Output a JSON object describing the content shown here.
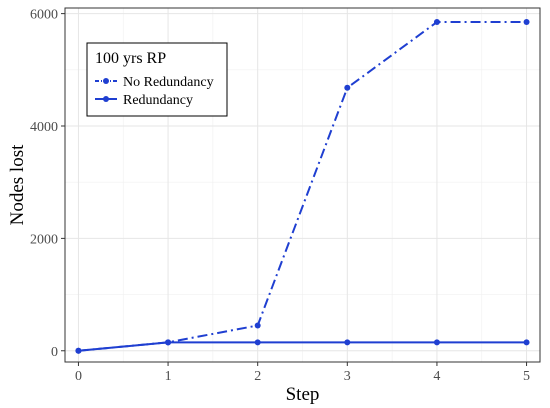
{
  "chart_data": {
    "type": "line",
    "title": "",
    "xlabel": "Step",
    "ylabel": "Nodes lost",
    "x": [
      0,
      1,
      2,
      3,
      4,
      5
    ],
    "xlim": [
      -0.15,
      5.15
    ],
    "ylim": [
      -200,
      6100
    ],
    "xticks": [
      "0",
      "1",
      "2",
      "3",
      "4",
      "5"
    ],
    "yticks": [
      0,
      2000,
      4000,
      6000
    ],
    "ytick_labels": [
      "0",
      "2000",
      "4000",
      "6000"
    ],
    "grid": true,
    "legend": {
      "title": "100 yrs RP",
      "placement": "top-left"
    },
    "series": [
      {
        "name": "No Redundancy",
        "values": [
          0,
          150,
          450,
          4680,
          5850,
          5850
        ],
        "line_style": "dashdot",
        "color": "#1f3fd1"
      },
      {
        "name": "Redundancy",
        "values": [
          0,
          150,
          150,
          150,
          150,
          150
        ],
        "line_style": "solid",
        "color": "#1f3fd1"
      }
    ]
  }
}
